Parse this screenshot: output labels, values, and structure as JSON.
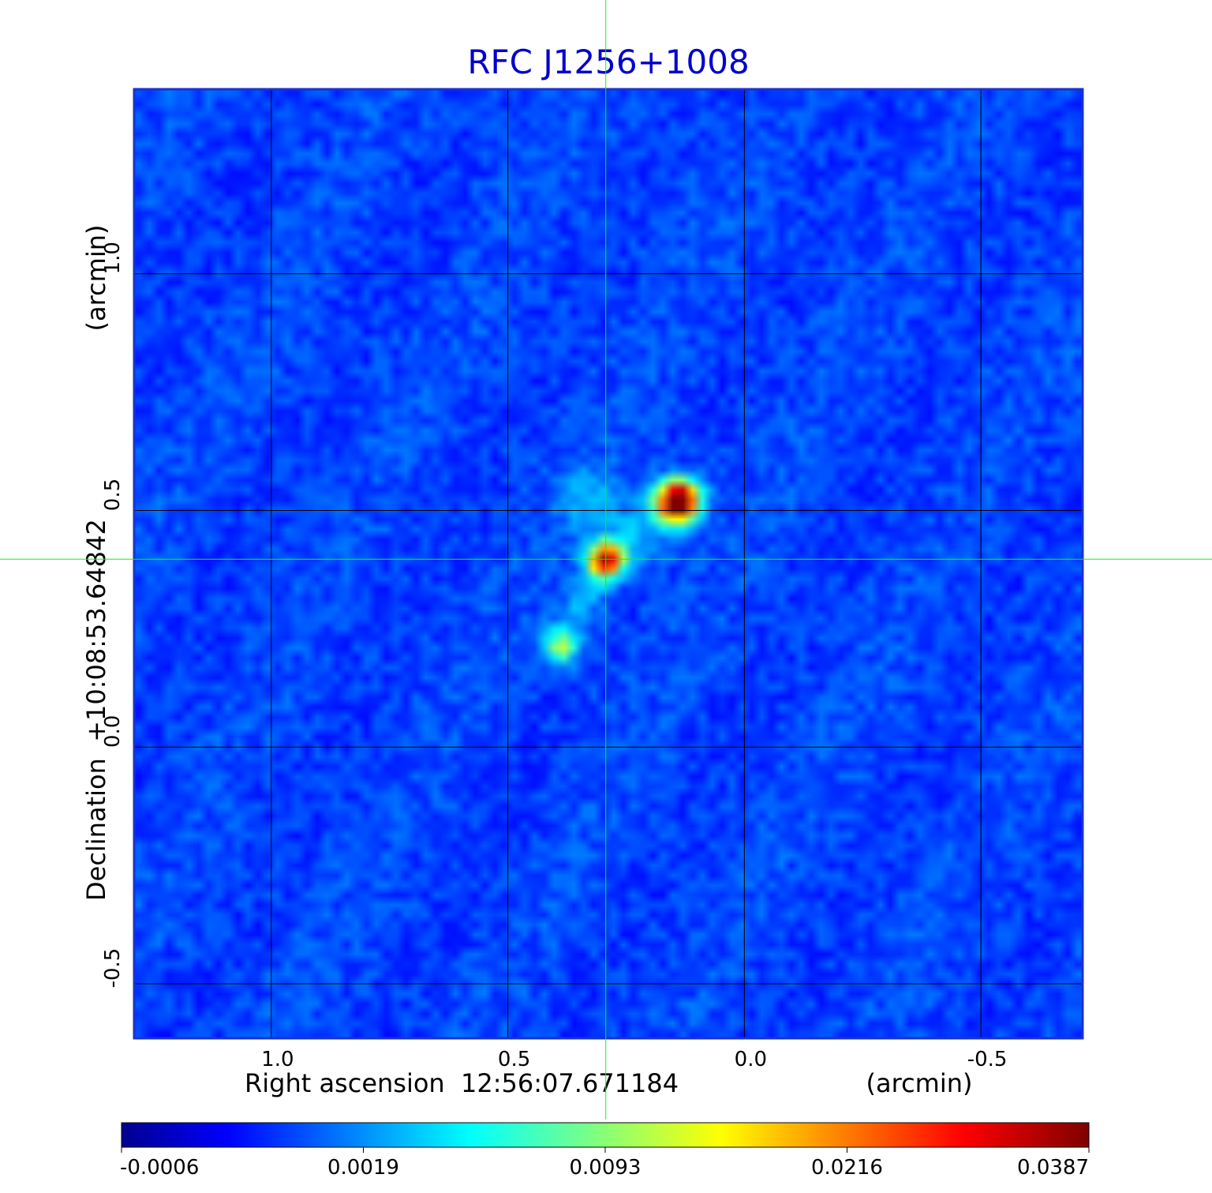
{
  "chart_data": {
    "type": "heatmap",
    "title": "RFC J1256+1008",
    "title_color": "#0000cc",
    "colormap": "jet",
    "background_color": "#1a4df2",
    "grid": true,
    "crosshair_color": "#00ff00",
    "x_axis": {
      "label_left": "Right ascension  12:56:07.671184",
      "label_right": "(arcmin)",
      "range": [
        1.29,
        -0.715
      ],
      "ticks": [
        1.0,
        0.5,
        0.0,
        -0.5
      ],
      "tick_labels": [
        "1.0",
        "0.5",
        "0.0",
        "-0.5"
      ]
    },
    "y_axis": {
      "label_left": "Declination  +10:08:53.64842",
      "label_right": "(arcmin)",
      "range": [
        -0.615,
        1.39
      ],
      "ticks": [
        -0.5,
        0.0,
        0.5,
        1.0
      ],
      "tick_labels": [
        "-0.5",
        "0.0",
        "0.5",
        "1.0"
      ]
    },
    "crosshair": {
      "x": 0.293,
      "y": 0.397
    },
    "emission_peaks": [
      {
        "x": 0.14,
        "y": 0.52,
        "value": 0.0387
      },
      {
        "x": 0.293,
        "y": 0.397,
        "value": 0.028
      },
      {
        "x": 0.39,
        "y": 0.21,
        "value": 0.012
      }
    ],
    "colorbar": {
      "ticks": [
        -0.0006,
        0.0019,
        0.0093,
        0.0216,
        0.0387
      ],
      "tick_labels": [
        "-0.0006",
        "0.0019",
        "0.0093",
        "0.0216",
        "0.0387"
      ]
    }
  }
}
